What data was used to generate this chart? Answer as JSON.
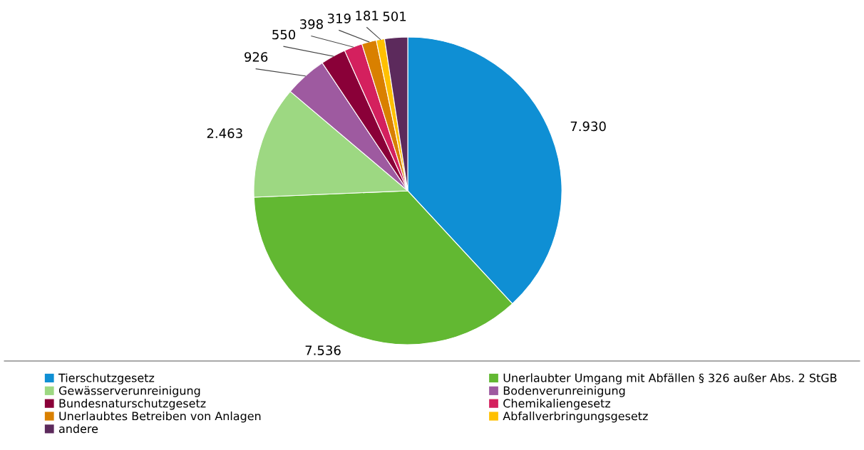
{
  "chart_data": {
    "type": "pie",
    "categories": [
      "Tierschutzgesetz",
      "Unerlaubter Umgang mit Abfällen § 326 außer Abs. 2 StGB",
      "Gewässerverunreinigung",
      "Bodenverunreinigung",
      "Bundesnaturschutzgesetz",
      "Chemikaliengesetz",
      "Unerlaubtes Betreiben von Anlagen",
      "Abfallverbringungsgesetz",
      "andere"
    ],
    "values": [
      7930,
      7536,
      2463,
      926,
      550,
      398,
      319,
      181,
      501
    ],
    "value_labels": [
      "7.930",
      "7.536",
      "2.463",
      "926",
      "550",
      "398",
      "319",
      "181",
      "501"
    ],
    "colors": [
      "#0f8fd4",
      "#62b832",
      "#9dd882",
      "#9e5aa0",
      "#8a0038",
      "#d4205e",
      "#d98000",
      "#ffc000",
      "#5c2a5c"
    ],
    "legend": "bottom"
  }
}
